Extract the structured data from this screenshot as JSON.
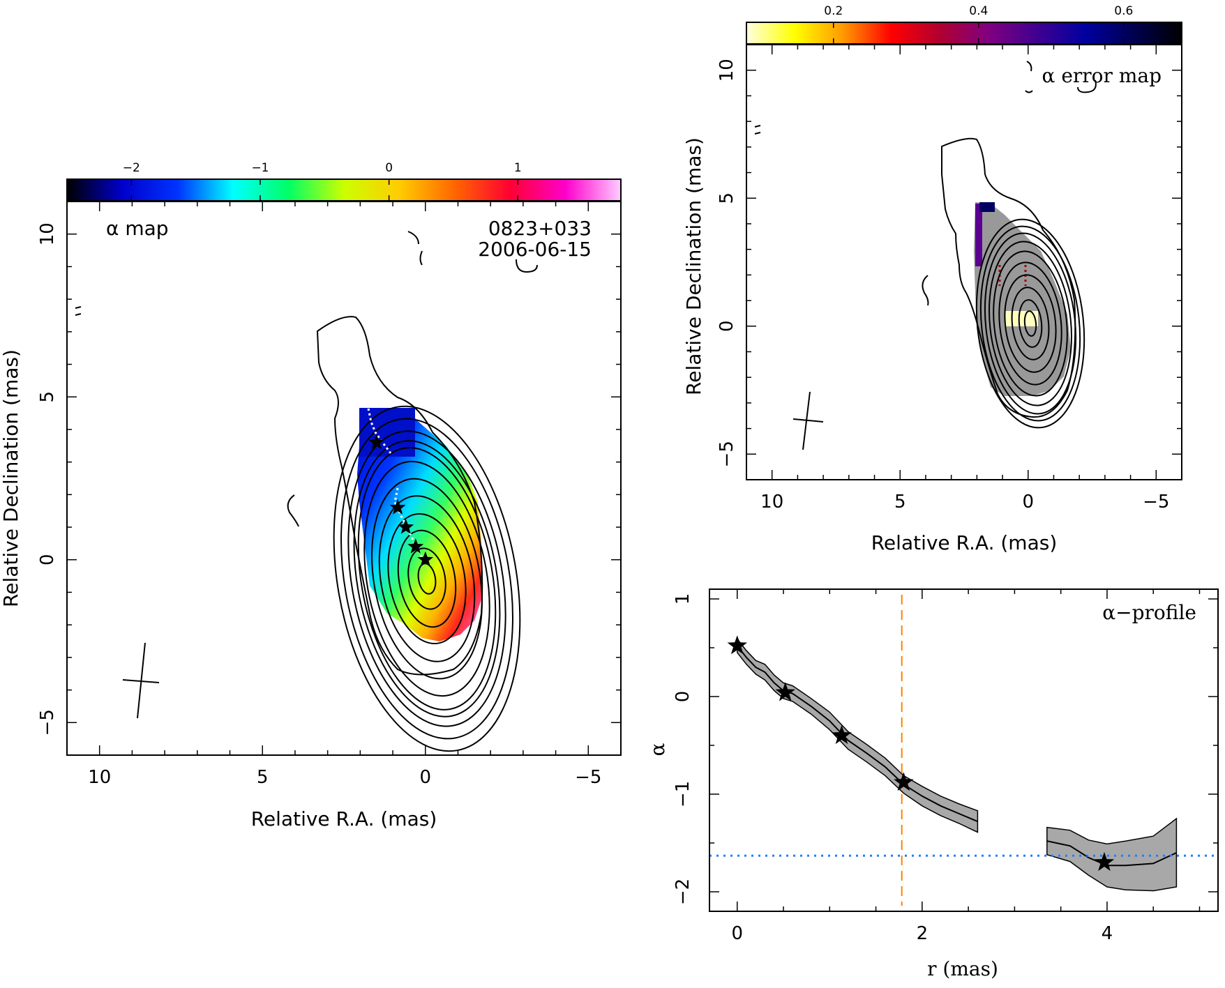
{
  "chart_data": [
    {
      "type": "heatmap",
      "name": "alpha_map",
      "annotation": "α map",
      "source": "0823+033",
      "date": "2006-06-15",
      "xlabel": "Relative R.A. (mas)",
      "ylabel": "Relative Declination (mas)",
      "xlim": [
        11,
        -6
      ],
      "ylim": [
        -6,
        11
      ],
      "xticks": [
        10,
        5,
        0,
        -5
      ],
      "yticks": [
        -5,
        0,
        5,
        10
      ],
      "colorbar": {
        "range": [
          -2.5,
          1.8
        ],
        "ticks": [
          -2,
          -1,
          0,
          1
        ],
        "palette": "rainbow",
        "colors": [
          "#000000",
          "#0000cc",
          "#0033ff",
          "#00ffff",
          "#00ff66",
          "#ccff00",
          "#ffcc00",
          "#ff6600",
          "#ff0033",
          "#ff00cc",
          "#ffccff"
        ]
      },
      "profile_points": [
        {
          "x": 1.5,
          "y": 3.6
        },
        {
          "x": 0.85,
          "y": 1.6
        },
        {
          "x": 0.6,
          "y": 1.0
        },
        {
          "x": 0.3,
          "y": 0.4
        },
        {
          "x": 0.0,
          "y": 0.0
        }
      ]
    },
    {
      "type": "heatmap",
      "name": "alpha_error_map",
      "annotation": "α error map",
      "xlabel": "Relative R.A. (mas)",
      "ylabel": "Relative Declination (mas)",
      "xlim": [
        11,
        -6
      ],
      "ylim": [
        -6,
        11
      ],
      "xticks": [
        10,
        5,
        0,
        -5
      ],
      "yticks": [
        -5,
        0,
        5,
        10
      ],
      "colorbar": {
        "range": [
          0.08,
          0.68
        ],
        "ticks": [
          0.2,
          0.4,
          0.6
        ],
        "palette": "heat",
        "colors": [
          "#ffffe0",
          "#ffff00",
          "#ff9900",
          "#ff0000",
          "#b00030",
          "#800080",
          "#400090",
          "#0000a0",
          "#000050",
          "#000000"
        ]
      }
    },
    {
      "type": "line",
      "name": "alpha_profile",
      "annotation": "α−profile",
      "xlabel": "r (mas)",
      "ylabel": "α",
      "xlim": [
        -0.3,
        5.2
      ],
      "ylim": [
        -2.2,
        1.1
      ],
      "xticks": [
        0,
        2,
        4
      ],
      "yticks": [
        -2,
        -1,
        0,
        1
      ],
      "segments": [
        {
          "x": [
            0.0,
            0.1,
            0.2,
            0.3,
            0.4,
            0.5,
            0.6,
            0.8,
            1.0,
            1.2,
            1.4,
            1.6,
            1.8,
            2.0,
            2.2,
            2.4,
            2.6
          ],
          "y": [
            0.52,
            0.4,
            0.3,
            0.25,
            0.14,
            0.06,
            0.03,
            -0.1,
            -0.25,
            -0.45,
            -0.58,
            -0.72,
            -0.9,
            -1.02,
            -1.12,
            -1.2,
            -1.28
          ],
          "err": [
            0.07,
            0.07,
            0.07,
            0.08,
            0.08,
            0.08,
            0.08,
            0.08,
            0.09,
            0.09,
            0.09,
            0.09,
            0.09,
            0.1,
            0.1,
            0.1,
            0.11
          ]
        },
        {
          "x": [
            3.35,
            3.6,
            3.8,
            4.0,
            4.2,
            4.5,
            4.75
          ],
          "y": [
            -1.48,
            -1.53,
            -1.65,
            -1.73,
            -1.73,
            -1.71,
            -1.6
          ],
          "err": [
            0.14,
            0.16,
            0.18,
            0.22,
            0.25,
            0.28,
            0.35
          ]
        }
      ],
      "stars": [
        {
          "x": 0.0,
          "y": 0.52
        },
        {
          "x": 0.52,
          "y": 0.04
        },
        {
          "x": 1.13,
          "y": -0.4
        },
        {
          "x": 1.8,
          "y": -0.88
        },
        {
          "x": 3.97,
          "y": -1.7
        }
      ],
      "vline": {
        "x": 1.78,
        "color": "#ff8000",
        "style": "dashed"
      },
      "hline": {
        "y": -1.63,
        "color": "#1f7fff",
        "style": "dotted"
      }
    }
  ]
}
